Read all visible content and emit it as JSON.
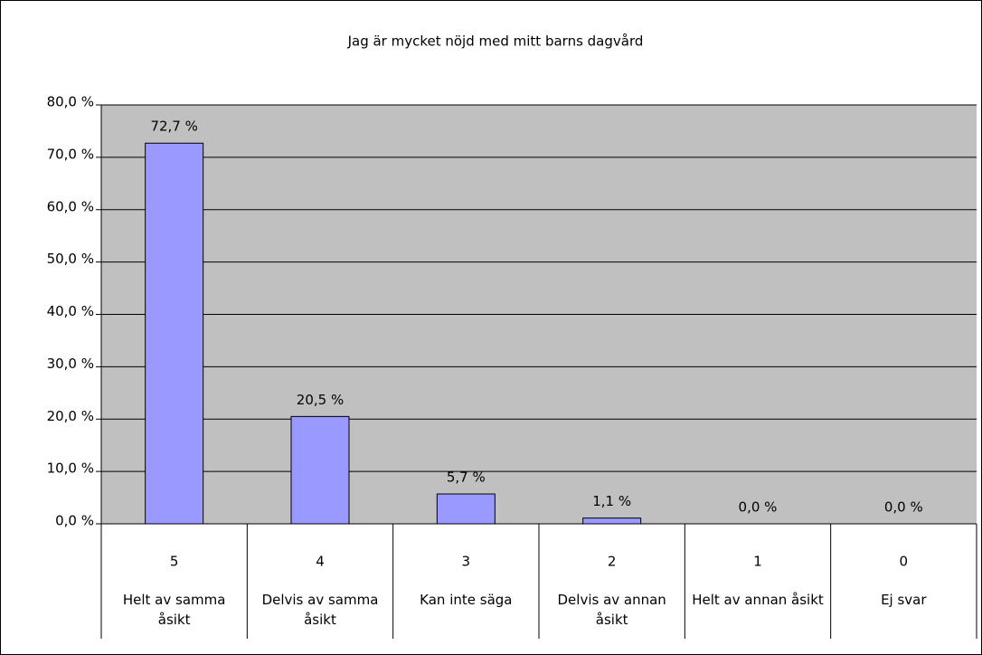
{
  "chart_data": {
    "type": "bar",
    "title": "Jag är mycket nöjd med mitt barns dagvård",
    "category_codes": [
      "5",
      "4",
      "3",
      "2",
      "1",
      "0"
    ],
    "categories": [
      "Helt av samma åsikt",
      "Delvis av samma åsikt",
      "Kan inte säga",
      "Delvis av annan åsikt",
      "Helt av annan åsikt",
      "Ej svar"
    ],
    "values": [
      72.7,
      20.5,
      5.7,
      1.1,
      0,
      0
    ],
    "value_labels": [
      "72,7 %",
      "20,5 %",
      "5,7 %",
      "1,1 %",
      "0,0 %",
      "0,0 %"
    ],
    "color": "#9999ff",
    "plot_background": "#c0c0c0",
    "ylim": [
      0,
      80
    ],
    "yticks": [
      {
        "value": 0,
        "label": "0,0 %"
      },
      {
        "value": 10,
        "label": "10,0 %"
      },
      {
        "value": 20,
        "label": "20,0 %"
      },
      {
        "value": 30,
        "label": "30,0 %"
      },
      {
        "value": 40,
        "label": "40,0 %"
      },
      {
        "value": 50,
        "label": "50,0 %"
      },
      {
        "value": 60,
        "label": "60,0 %"
      },
      {
        "value": 70,
        "label": "70,0 %"
      },
      {
        "value": 80,
        "label": "80,0 %"
      }
    ],
    "grid": true
  }
}
